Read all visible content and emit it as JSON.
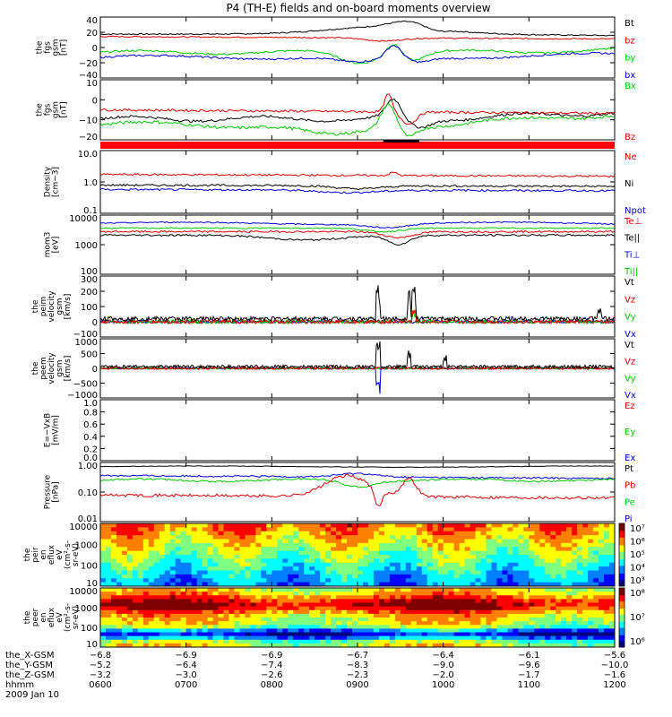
{
  "title": "P4 (TH-E) fields and on-board moments overview",
  "colors": {
    "black": "#000000",
    "red": "#dd0000",
    "green": "#00c800",
    "blue": "#0000dd",
    "bar": "#ff0000"
  },
  "chart_data": [
    {
      "type": "line",
      "ylabel": [
        "the",
        "fgs",
        "gsm",
        "[nT]"
      ],
      "ylim": [
        -40,
        40
      ],
      "yticks": [
        "40",
        "20",
        "0",
        "−20",
        "−40"
      ],
      "series": [
        {
          "name": "Bt",
          "color": "black"
        },
        {
          "name": "bz",
          "color": "red"
        },
        {
          "name": "by",
          "color": "green"
        },
        {
          "name": "bx",
          "color": "blue"
        }
      ]
    },
    {
      "type": "line",
      "ylabel": [
        "the",
        "fgs",
        "gsm",
        "[nT]"
      ],
      "ylim": [
        -25,
        18
      ],
      "yticks": [
        "10",
        "0",
        "−10",
        "−20"
      ],
      "series": [
        {
          "name": "Bx",
          "color": "green"
        },
        {
          "name": "Bz",
          "color": "red"
        }
      ]
    },
    {
      "type": "line",
      "log": true,
      "ylabel": [
        "Density",
        "[cm−3]"
      ],
      "yticks": [
        "10.0",
        "1.0",
        "0.1"
      ],
      "series": [
        {
          "name": "Ne",
          "color": "red"
        },
        {
          "name": "Ni",
          "color": "black"
        },
        {
          "name": "Npot",
          "color": "blue"
        }
      ]
    },
    {
      "type": "line",
      "log": true,
      "ylabel": [
        "mom3",
        "[eV]"
      ],
      "yticks": [
        "10000",
        "1000",
        "100"
      ],
      "series": [
        {
          "name": "Te⊥",
          "color": "red"
        },
        {
          "name": "Te||",
          "color": "black"
        },
        {
          "name": "Ti⊥",
          "color": "blue"
        },
        {
          "name": "Ti||",
          "color": "green"
        }
      ]
    },
    {
      "type": "line",
      "ylabel": [
        "the",
        "peim",
        "velocity",
        "gsm",
        "[km/s]"
      ],
      "ylim": [
        -100,
        300
      ],
      "yticks": [
        "300",
        "200",
        "100",
        "0",
        "−100"
      ],
      "series": [
        {
          "name": "Vt",
          "color": "black"
        },
        {
          "name": "Vz",
          "color": "red"
        },
        {
          "name": "Vy",
          "color": "green"
        },
        {
          "name": "Vx",
          "color": "blue"
        }
      ]
    },
    {
      "type": "line",
      "ylabel": [
        "the",
        "peem",
        "velocity",
        "gsm",
        "[km/s]"
      ],
      "ylim": [
        -1000,
        1000
      ],
      "yticks": [
        "1000",
        "500",
        "0",
        "−500",
        "−1000"
      ],
      "series": [
        {
          "name": "Vt",
          "color": "black"
        },
        {
          "name": "Vz",
          "color": "red"
        },
        {
          "name": "Vy",
          "color": "green"
        },
        {
          "name": "Vx",
          "color": "blue"
        }
      ]
    },
    {
      "type": "line",
      "ylabel": [
        "E=−VxB",
        "[mV/m]"
      ],
      "ylim": [
        0,
        1
      ],
      "yticks": [
        "1.0",
        "0.8",
        "0.6",
        "0.4",
        "0.2",
        "0.0"
      ],
      "series": [
        {
          "name": "Ez",
          "color": "red"
        },
        {
          "name": "Ey",
          "color": "green"
        },
        {
          "name": "Ex",
          "color": "blue"
        }
      ]
    },
    {
      "type": "line",
      "log": true,
      "ylabel": [
        "Pressure",
        "[nPa]"
      ],
      "yticks": [
        "1.00",
        "0.10",
        "0.01"
      ],
      "series": [
        {
          "name": "Pt",
          "color": "black"
        },
        {
          "name": "Pb",
          "color": "red"
        },
        {
          "name": "Pe",
          "color": "green"
        },
        {
          "name": "Pi",
          "color": "blue"
        }
      ]
    },
    {
      "type": "heatmap",
      "ylabel": [
        "the",
        "peir",
        "en",
        "eflux",
        "eV",
        "(cm²-s-",
        "sr-eV)"
      ],
      "yticks": [
        "10000",
        "1000",
        "100",
        "10"
      ],
      "colorbar": [
        "10⁷",
        "10⁶",
        "10⁵",
        "10⁴",
        "10³"
      ]
    },
    {
      "type": "heatmap",
      "ylabel": [
        "the",
        "peer",
        "en",
        "eflux",
        "eV",
        "(cm²-s-",
        "sr-eV)"
      ],
      "yticks": [
        "10000",
        "1000",
        "100",
        "10"
      ],
      "colorbar": [
        "10⁸",
        "10⁷",
        "10⁶"
      ]
    }
  ],
  "xaxis": {
    "rows": [
      {
        "label": "the_X-GSM",
        "values": [
          "−6.8",
          "−6.9",
          "−6.9",
          "−6.7",
          "−6.4",
          "−6.1",
          "−5.6"
        ]
      },
      {
        "label": "the_Y-GSM",
        "values": [
          "−5.2",
          "−6.4",
          "−7.4",
          "−8.3",
          "−9.0",
          "−9.6",
          "−10.0"
        ]
      },
      {
        "label": "the_Z-GSM",
        "values": [
          "−3.2",
          "−3.0",
          "−2.6",
          "−2.3",
          "−2.0",
          "−1.7",
          "−1.6"
        ]
      },
      {
        "label": "hhmm",
        "values": [
          "0600",
          "0700",
          "0800",
          "0900",
          "1000",
          "1100",
          "1200"
        ]
      }
    ],
    "date": "2009 Jan 10"
  }
}
